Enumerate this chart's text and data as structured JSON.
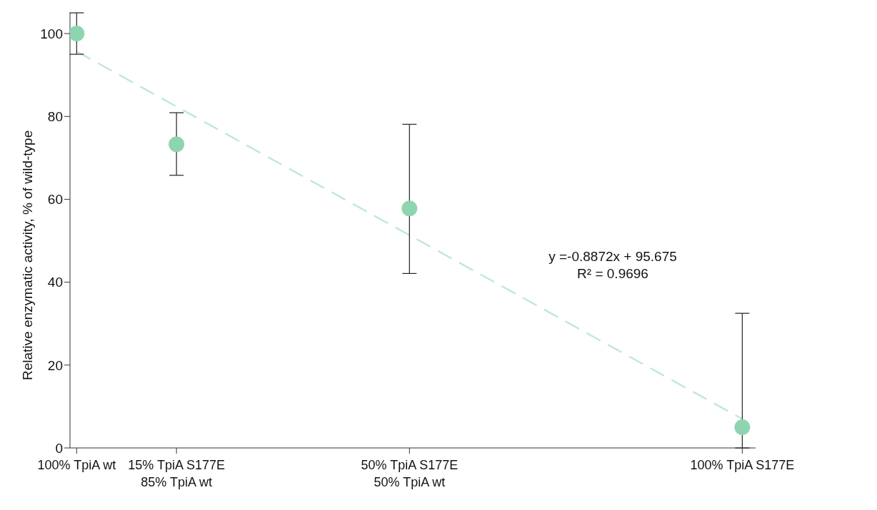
{
  "chart_data": {
    "type": "scatter",
    "ylabel": "Relative enzymatic activity, % of wild-type",
    "categories": [
      "100% TpiA wt",
      null,
      null,
      "15% TpiA S177E\n85% TpiA wt",
      null,
      null,
      null,
      null,
      null,
      null,
      "50% TpiA S177E\n50% TpiA wt",
      null,
      null,
      null,
      null,
      null,
      null,
      null,
      null,
      null,
      "100% TpiA S177E"
    ],
    "ylim": [
      0,
      105
    ],
    "yticks": [
      0,
      20,
      40,
      60,
      80,
      100
    ],
    "grid": false,
    "legend": false,
    "series": [
      {
        "color": "#8fd4b0",
        "marker": "circle",
        "values": [
          100,
          null,
          null,
          73.3,
          null,
          null,
          null,
          null,
          null,
          null,
          57.8,
          null,
          null,
          null,
          null,
          null,
          null,
          null,
          null,
          null,
          5
        ],
        "errors": [
          [
            95,
            105
          ],
          null,
          null,
          [
            65.8,
            80.9
          ],
          null,
          null,
          null,
          null,
          null,
          null,
          [
            42.1,
            78.1
          ],
          null,
          null,
          null,
          null,
          null,
          null,
          null,
          null,
          null,
          [
            0,
            32.5
          ]
        ]
      },
      {
        "type": "line",
        "color": "#c2e8d8",
        "line_style": "dashed",
        "marker": "none",
        "x": [
          "100% TpiA wt",
          "100% TpiA S177E"
        ],
        "values": [
          95.7,
          7.0
        ]
      }
    ],
    "annotations": [
      "y =-0.8872x + 95.675",
      "R² = 0.9696"
    ]
  }
}
